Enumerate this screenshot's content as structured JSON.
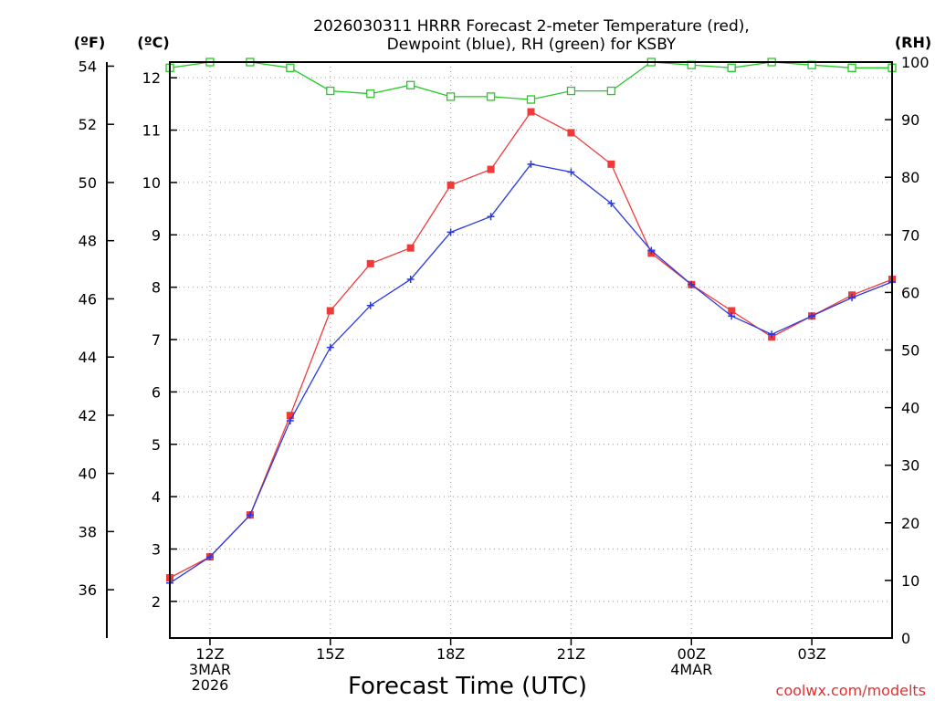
{
  "chart_data": {
    "type": "line",
    "title_lines": [
      "2026030311 HRRR Forecast 2-meter Temperature (red),",
      "Dewpoint (blue), RH (green) for KSBY"
    ],
    "xlabel": "Forecast Time (UTC)",
    "credit": "coolwx.com/modelts",
    "units": {
      "fahrenheit": "(ºF)",
      "celsius": "(ºC)",
      "rh": "(RH)"
    },
    "x": [
      11,
      12,
      13,
      14,
      15,
      16,
      17,
      18,
      19,
      20,
      21,
      22,
      23,
      24,
      25,
      26,
      27,
      28,
      29
    ],
    "x_range": [
      11,
      29
    ],
    "x_ticks": [
      {
        "x": 12,
        "lines": [
          "12Z",
          "3MAR",
          "2026"
        ]
      },
      {
        "x": 15,
        "lines": [
          "15Z"
        ]
      },
      {
        "x": 18,
        "lines": [
          "18Z"
        ]
      },
      {
        "x": 21,
        "lines": [
          "21Z"
        ]
      },
      {
        "x": 24,
        "lines": [
          "00Z",
          "4MAR"
        ]
      },
      {
        "x": 27,
        "lines": [
          "03Z"
        ]
      }
    ],
    "celsius_range": [
      1.3,
      12.3
    ],
    "celsius_ticks": [
      2,
      3,
      4,
      5,
      6,
      7,
      8,
      9,
      10,
      11,
      12
    ],
    "fahrenheit_ticks": [
      36,
      38,
      40,
      42,
      44,
      46,
      48,
      50,
      52,
      54
    ],
    "rh_range": [
      0,
      100
    ],
    "rh_ticks": [
      0,
      10,
      20,
      30,
      40,
      50,
      60,
      70,
      80,
      90,
      100
    ],
    "series": [
      {
        "name": "Temperature",
        "unit": "C",
        "color": "#f03a3a",
        "marker": "square-filled",
        "values": [
          2.45,
          2.85,
          3.65,
          5.55,
          7.55,
          8.45,
          8.75,
          9.95,
          10.25,
          11.35,
          10.95,
          10.35,
          8.65,
          8.05,
          7.55,
          7.05,
          7.45,
          7.85,
          8.15
        ]
      },
      {
        "name": "Dewpoint",
        "unit": "C",
        "color": "#2a3ae0",
        "marker": "plus",
        "values": [
          2.35,
          2.85,
          3.65,
          5.45,
          6.85,
          7.65,
          8.15,
          9.05,
          9.35,
          10.35,
          10.2,
          9.6,
          8.7,
          8.05,
          7.45,
          7.1,
          7.45,
          7.8,
          8.1
        ]
      },
      {
        "name": "RH",
        "unit": "%",
        "color": "#22cc22",
        "marker": "square-open",
        "values": [
          99,
          100,
          100,
          99,
          95,
          94.5,
          96,
          94,
          94,
          93.5,
          95,
          95,
          100,
          99.5,
          99,
          100,
          99.5,
          99,
          99
        ]
      }
    ]
  }
}
